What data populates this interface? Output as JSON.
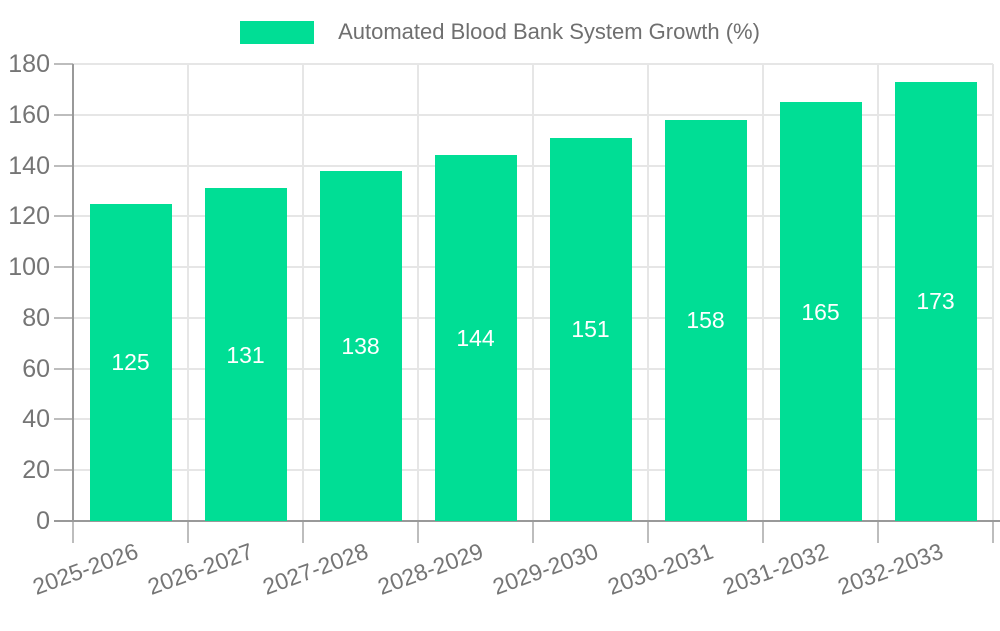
{
  "legend": {
    "series_label": "Automated Blood Bank System Growth (%)"
  },
  "chart_data": {
    "type": "bar",
    "title": "Automated Blood Bank System Growth (%)",
    "series_name": "Automated Blood Bank System Growth (%)",
    "categories": [
      "2025-2026",
      "2026-2027",
      "2027-2028",
      "2028-2029",
      "2029-2030",
      "2030-2031",
      "2031-2032",
      "2032-2033"
    ],
    "values": [
      125,
      131,
      138,
      144,
      151,
      158,
      165,
      173
    ],
    "value_labels": [
      "125",
      "131",
      "138",
      "144",
      "151",
      "158",
      "165",
      "173"
    ],
    "ytick_labels": [
      "0",
      "20",
      "40",
      "60",
      "80",
      "100",
      "120",
      "140",
      "160",
      "180"
    ],
    "xlabel": "",
    "ylabel": "",
    "ylim": [
      0,
      180
    ],
    "ytick_step": 20,
    "grid": "on",
    "legend_position": "top-center",
    "colors": {
      "bar": "#00DE95",
      "grid": "#e6e6e6",
      "axis": "#999999",
      "tick": "#bdbdbd",
      "tick_text": "#757575",
      "value_text": "#ffffff",
      "legend_text": "#6f6f6f"
    }
  }
}
